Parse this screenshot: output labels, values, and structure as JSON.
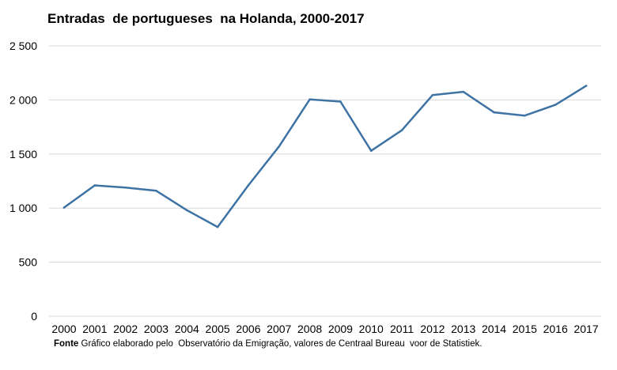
{
  "chart_data": {
    "type": "line",
    "title": "Entradas  de portugueses  na Holanda, 2000-2017",
    "xlabel": "",
    "ylabel": "",
    "x": [
      "2000",
      "2001",
      "2002",
      "2003",
      "2004",
      "2005",
      "2006",
      "2007",
      "2008",
      "2009",
      "2010",
      "2011",
      "2012",
      "2013",
      "2014",
      "2015",
      "2016",
      "2017"
    ],
    "series": [
      {
        "values": [
          1005,
          1210,
          1190,
          1160,
          980,
          825,
          1210,
          1570,
          2005,
          1985,
          1530,
          1720,
          2045,
          2075,
          1885,
          1855,
          1955,
          2130
        ]
      }
    ],
    "ylim": [
      0,
      2500
    ],
    "yticks": [
      0,
      500,
      1000,
      1500,
      2000,
      2500
    ],
    "ytick_labels": [
      "0",
      "500",
      "1 000",
      "1 500",
      "2 000",
      "2 500"
    ],
    "grid": true,
    "legend": "none",
    "line_color": "#3e73a4",
    "grid_color": "#d9d9d9",
    "source_label": "Fonte",
    "source_text": " Gráfico elaborado pelo  Observatório da Emigração, valores de Centraal Bureau  voor de Statistiek."
  }
}
